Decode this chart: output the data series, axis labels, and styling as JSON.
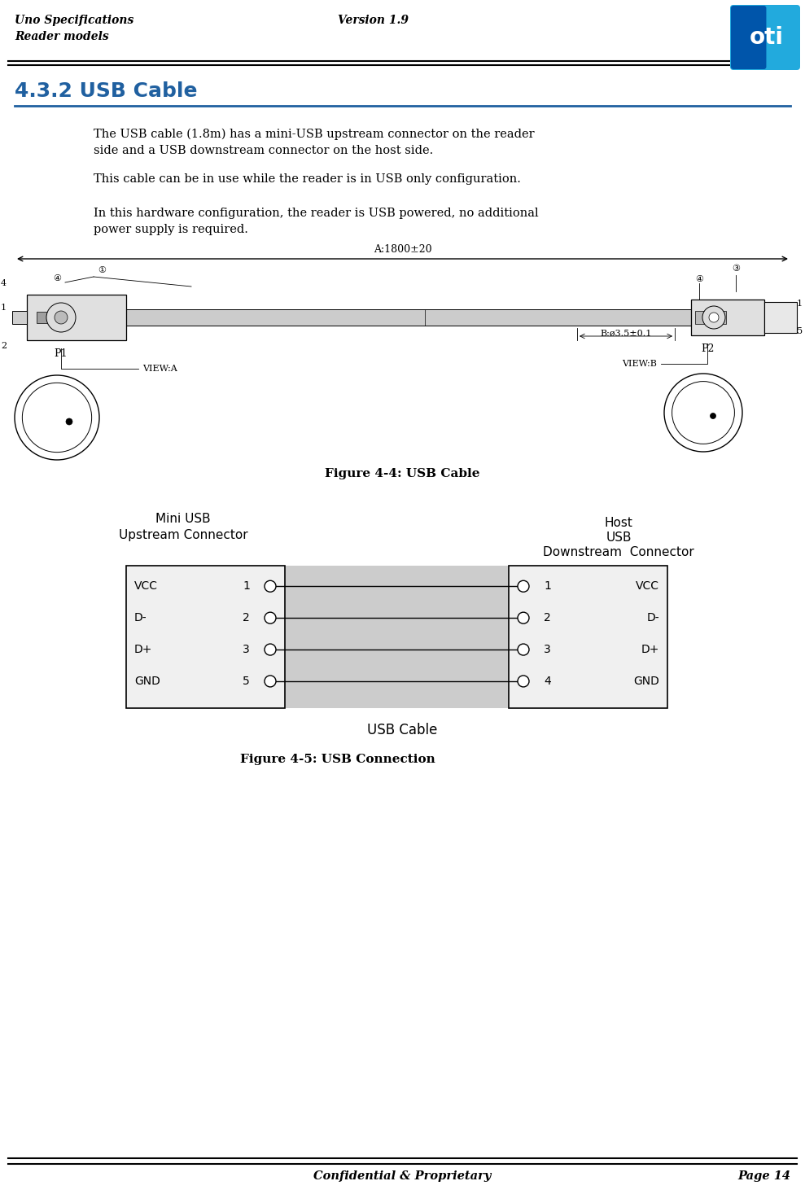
{
  "page_width": 9.89,
  "page_height": 14.78,
  "bg_color": "#ffffff",
  "header_left_top": "Uno Specifications",
  "header_left_bottom": "Reader models",
  "header_center": "Version 1.9",
  "footer_center": "Confidential & Proprietary",
  "footer_right": "Page 14",
  "section_title": "4.3.2 USB Cable",
  "section_title_color": "#2060a0",
  "section_underline_color": "#2060a0",
  "para1_line1": "The USB cable (1.8m) has a mini-USB upstream connector on the reader",
  "para1_line2": "side and a USB downstream connector on the host side.",
  "para2": "This cable can be in use while the reader is in USB only configuration.",
  "para3_line1": "In this hardware configuration, the reader is USB powered, no additional",
  "para3_line2": "power supply is required.",
  "fig4_caption": "Figure 4-4: USB Cable",
  "fig5_caption": "Figure 4-5: USB Connection",
  "usb_cable_label": "USB Cable",
  "left_connector_label_line1": "Mini USB",
  "left_connector_label_line2": "Upstream Connector",
  "right_connector_label_line1": "Host",
  "right_connector_label_line2": "USB",
  "right_connector_label_line3": "Downstream  Connector",
  "left_pins": [
    {
      "label": "VCC",
      "num": "1"
    },
    {
      "label": "D-",
      "num": "2"
    },
    {
      "label": "D+",
      "num": "3"
    },
    {
      "label": "GND",
      "num": "5"
    }
  ],
  "right_pins": [
    {
      "label": "VCC",
      "num": "1"
    },
    {
      "label": "D-",
      "num": "2"
    },
    {
      "label": "D+",
      "num": "3"
    },
    {
      "label": "GND",
      "num": "4"
    }
  ],
  "text_color": "#000000",
  "cable_gray": "#c8c8c8",
  "box_gray": "#d8d8d8",
  "connector_bg": "#eeeeee"
}
